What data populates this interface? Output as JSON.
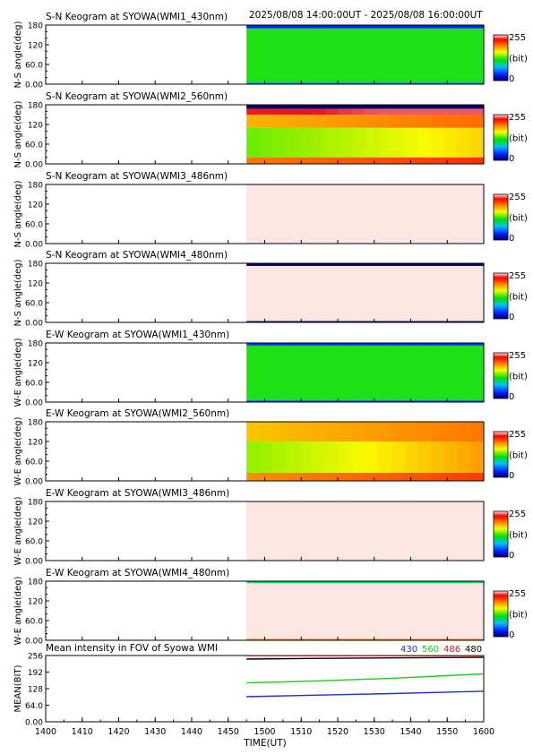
{
  "header": {
    "time_range": "2025/08/08 14:00:00UT - 2025/08/08 16:00:00UT"
  },
  "colors": {
    "black": "#000000",
    "pale_pink": "#fbe6e4",
    "channel_430": "#1f2fd0",
    "channel_560": "#22c81e",
    "channel_486": "#c81e1e",
    "channel_480": "#000000"
  },
  "colorbar": {
    "max_label": "255",
    "min_label": "0",
    "unit_label": "(bit)"
  },
  "chart_data": [
    {
      "type": "heatmap",
      "title": "S-N Keogram at SYOWA(WMI1_430nm)",
      "ylabel": "N-S angle(deg)",
      "yticks": [
        "180",
        "120",
        "60.0",
        "0.00"
      ],
      "ylim": [
        0,
        180
      ],
      "data_start_ut": "14:55",
      "description_values": {
        "bands": [
          {
            "from": 0,
            "to": 5,
            "value": 55
          },
          {
            "from": 5,
            "to": 170,
            "value": 110
          },
          {
            "from": 170,
            "to": 180,
            "value": 35
          }
        ],
        "drift": 0
      }
    },
    {
      "type": "heatmap",
      "title": "S-N Keogram at SYOWA(WMI2_560nm)",
      "ylabel": "N-S angle(deg)",
      "yticks": [
        "180",
        "120",
        "60.0",
        "0.00"
      ],
      "ylim": [
        0,
        180
      ],
      "data_start_ut": "14:55",
      "description_values": {
        "bands": [
          {
            "from": 0,
            "to": 20,
            "value": 200
          },
          {
            "from": 20,
            "to": 110,
            "value": 130
          },
          {
            "from": 110,
            "to": 150,
            "value": 185
          },
          {
            "from": 150,
            "to": 168,
            "value": 235
          },
          {
            "from": 168,
            "to": 180,
            "value": 0
          }
        ],
        "drift": 45
      }
    },
    {
      "type": "heatmap",
      "title": "S-N Keogram at SYOWA(WMI3_486nm)",
      "ylabel": "N-S angle(deg)",
      "yticks": [
        "180",
        "120",
        "60.0",
        "0.00"
      ],
      "ylim": [
        0,
        180
      ],
      "data_start_ut": "14:55",
      "description_values": {
        "bands": [
          {
            "from": 0,
            "to": 180,
            "value": 255
          }
        ],
        "drift": 0
      }
    },
    {
      "type": "heatmap",
      "title": "S-N Keogram at SYOWA(WMI4_480nm)",
      "ylabel": "N-S angle(deg)",
      "yticks": [
        "180",
        "120",
        "60.0",
        "0.00"
      ],
      "ylim": [
        0,
        180
      ],
      "data_start_ut": "14:55",
      "description_values": {
        "bands": [
          {
            "from": 0,
            "to": 4,
            "value": 0
          },
          {
            "from": 4,
            "to": 172,
            "value": 255
          },
          {
            "from": 172,
            "to": 180,
            "value": 0
          }
        ],
        "drift": 0
      }
    },
    {
      "type": "heatmap",
      "title": "E-W Keogram at SYOWA(WMI1_430nm)",
      "ylabel": "W-E angle(deg)",
      "yticks": [
        "180",
        "120",
        "60.0",
        "0.00"
      ],
      "ylim": [
        0,
        180
      ],
      "data_start_ut": "14:55",
      "description_values": {
        "bands": [
          {
            "from": 0,
            "to": 5,
            "value": 40
          },
          {
            "from": 5,
            "to": 172,
            "value": 110
          },
          {
            "from": 172,
            "to": 180,
            "value": 40
          }
        ],
        "drift": 0
      }
    },
    {
      "type": "heatmap",
      "title": "E-W Keogram at SYOWA(WMI2_560nm)",
      "ylabel": "W-E angle(deg)",
      "yticks": [
        "180",
        "120",
        "60.0",
        "0.00"
      ],
      "ylim": [
        0,
        180
      ],
      "data_start_ut": "14:55",
      "description_values": {
        "bands": [
          {
            "from": 0,
            "to": 25,
            "value": 195
          },
          {
            "from": 25,
            "to": 120,
            "value": 140
          },
          {
            "from": 120,
            "to": 180,
            "value": 180
          }
        ],
        "drift": 50
      }
    },
    {
      "type": "heatmap",
      "title": "E-W Keogram at SYOWA(WMI3_486nm)",
      "ylabel": "W-E angle(deg)",
      "yticks": [
        "180",
        "120",
        "60.0",
        "0.00"
      ],
      "ylim": [
        0,
        180
      ],
      "data_start_ut": "14:55",
      "description_values": {
        "bands": [
          {
            "from": 0,
            "to": 180,
            "value": 255
          }
        ],
        "drift": 0
      }
    },
    {
      "type": "heatmap",
      "title": "E-W Keogram at SYOWA(WMI4_480nm)",
      "ylabel": "W-E angle(deg)",
      "yticks": [
        "180",
        "120",
        "60.0",
        "0.00"
      ],
      "ylim": [
        0,
        180
      ],
      "data_start_ut": "14:55",
      "description_values": {
        "bands": [
          {
            "from": 0,
            "to": 4,
            "value": 200
          },
          {
            "from": 4,
            "to": 174,
            "value": 255
          },
          {
            "from": 174,
            "to": 180,
            "value": 100
          }
        ],
        "drift": 0
      }
    },
    {
      "type": "line",
      "title": "Mean intensity in FOV of Syowa WMI",
      "ylabel": "MEAN(BIT)",
      "xlabel": "TIME(UT)",
      "yticks": [
        "256",
        "192",
        "128",
        "64.0",
        "0.00"
      ],
      "ylim": [
        0,
        256
      ],
      "xticks": [
        "1400",
        "1410",
        "1420",
        "1430",
        "1440",
        "1450",
        "1500",
        "1510",
        "1520",
        "1530",
        "1540",
        "1550",
        "1600"
      ],
      "xlim": [
        "14:00",
        "16:00"
      ],
      "series": [
        {
          "name": "430",
          "color": "#1f2fd0",
          "x": [
            "14:55",
            "15:15",
            "15:35",
            "16:00"
          ],
          "values": [
            97,
            103,
            109,
            118
          ]
        },
        {
          "name": "560",
          "color": "#22c81e",
          "x": [
            "14:55",
            "15:15",
            "15:35",
            "16:00"
          ],
          "values": [
            150,
            158,
            168,
            185
          ]
        },
        {
          "name": "486",
          "color": "#c81e1e",
          "x": [
            "14:55",
            "16:00"
          ],
          "values": [
            255,
            255
          ]
        },
        {
          "name": "480",
          "color": "#000000",
          "x": [
            "14:55",
            "15:15",
            "16:00"
          ],
          "values": [
            242,
            245,
            249
          ]
        }
      ]
    }
  ]
}
